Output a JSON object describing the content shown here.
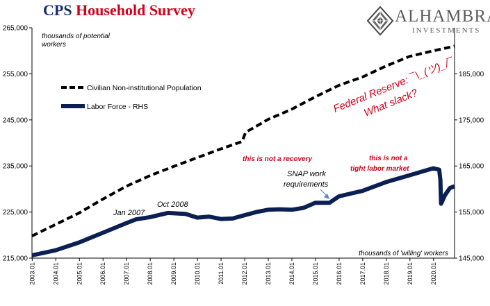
{
  "header": {
    "title_part1": "CPS",
    "title_part2": "Household Survey",
    "logo_name": "ALHAMBRA",
    "logo_sub": "INVESTMENTS"
  },
  "colors": {
    "population": "#000000",
    "labor_force": "#0b1f52",
    "annotation_red": "#d0021b",
    "title_blue": "#1a2a6c"
  },
  "chart_data": {
    "type": "line",
    "x_labels": [
      "2003.01",
      "2004.01",
      "2005.01",
      "2006.01",
      "2007.01",
      "2008.01",
      "2009.01",
      "2010.01",
      "2011.01",
      "2012.01",
      "2013.01",
      "2014.01",
      "2015.01",
      "2016.01",
      "2017.01",
      "2018.01",
      "2019.01",
      "2020.01"
    ],
    "x_range": [
      2003.0,
      2020.9
    ],
    "y_left": {
      "ticks": [
        "215,000",
        "225,000",
        "235,000",
        "245,000",
        "255,000",
        "265,000"
      ],
      "range": [
        215000,
        265000
      ],
      "label": "thousands of potential workers"
    },
    "y_right": {
      "ticks": [
        "145,000",
        "155,000",
        "165,000",
        "175,000",
        "185,000"
      ],
      "range": [
        145000,
        195000
      ],
      "label": "thousands of 'willing' workers"
    },
    "grid": false,
    "legend_position": "top-left",
    "series": [
      {
        "name": "Civilian Non-institutional Population",
        "axis": "left",
        "style": "dashed",
        "points": [
          [
            2003.0,
            219800
          ],
          [
            2004.0,
            222300
          ],
          [
            2005.0,
            224800
          ],
          [
            2006.0,
            227800
          ],
          [
            2007.0,
            230600
          ],
          [
            2008.0,
            232900
          ],
          [
            2009.0,
            234900
          ],
          [
            2010.0,
            236800
          ],
          [
            2011.0,
            238700
          ],
          [
            2011.9,
            240300
          ],
          [
            2012.05,
            242300
          ],
          [
            2013.0,
            245100
          ],
          [
            2014.0,
            247300
          ],
          [
            2015.0,
            250000
          ],
          [
            2016.0,
            252500
          ],
          [
            2017.0,
            254300
          ],
          [
            2018.0,
            256700
          ],
          [
            2019.0,
            258800
          ],
          [
            2020.0,
            260000
          ],
          [
            2020.9,
            261000
          ]
        ]
      },
      {
        "name": "Labor Force - RHS",
        "axis": "right",
        "style": "solid",
        "points": [
          [
            2003.0,
            145600
          ],
          [
            2004.0,
            146700
          ],
          [
            2005.0,
            148400
          ],
          [
            2006.0,
            150500
          ],
          [
            2007.0,
            152600
          ],
          [
            2007.4,
            153400
          ],
          [
            2008.0,
            153900
          ],
          [
            2008.75,
            154800
          ],
          [
            2009.5,
            154600
          ],
          [
            2010.0,
            153800
          ],
          [
            2010.5,
            154000
          ],
          [
            2011.0,
            153500
          ],
          [
            2011.5,
            153600
          ],
          [
            2012.0,
            154300
          ],
          [
            2012.5,
            155000
          ],
          [
            2013.0,
            155500
          ],
          [
            2013.5,
            155600
          ],
          [
            2014.0,
            155500
          ],
          [
            2014.5,
            155900
          ],
          [
            2015.0,
            157000
          ],
          [
            2015.6,
            157000
          ],
          [
            2016.0,
            158400
          ],
          [
            2016.5,
            159000
          ],
          [
            2017.0,
            159600
          ],
          [
            2018.0,
            161500
          ],
          [
            2019.0,
            163000
          ],
          [
            2020.0,
            164500
          ],
          [
            2020.25,
            164200
          ],
          [
            2020.3,
            162000
          ],
          [
            2020.33,
            156800
          ],
          [
            2020.5,
            158700
          ],
          [
            2020.7,
            160200
          ],
          [
            2020.9,
            160600
          ]
        ]
      }
    ],
    "annotations": [
      {
        "text": "Jan  2007",
        "color": "#000000"
      },
      {
        "text": "Oct 2008",
        "color": "#000000"
      },
      {
        "text": "this is not a recovery",
        "color": "#d0021b"
      },
      {
        "text": "SNAP work",
        "color": "#000000"
      },
      {
        "text": "requirements",
        "color": "#000000"
      },
      {
        "text": "this is not a",
        "color": "#d0021b"
      },
      {
        "text": "tight labor market",
        "color": "#d0021b"
      },
      {
        "text": "Federal Reserve: ¯\\_(ツ)_/¯",
        "color": "#d0021b"
      },
      {
        "text": "What slack?",
        "color": "#d0021b"
      }
    ]
  }
}
